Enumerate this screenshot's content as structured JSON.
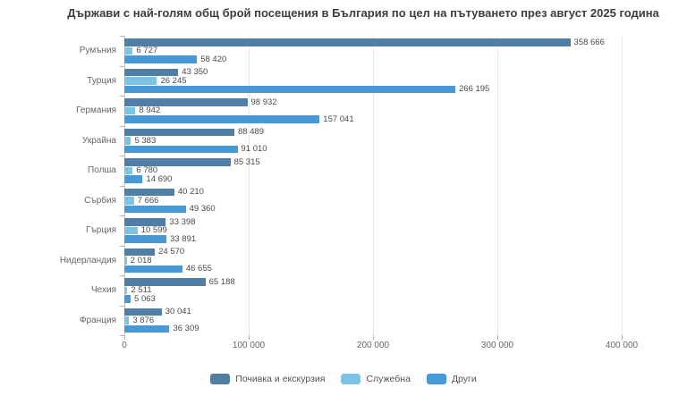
{
  "title": "Държави с най-голям общ брой посещения в България по цел на пътуването през август 2025 година",
  "colors": {
    "background": "#ffffff",
    "gridline": "#e9e9e9",
    "axis_line": "#c6c6c6",
    "tick": "#b3b3b3",
    "axis_label": "#666666",
    "value_label": "#4a4a4a",
    "title": "#3d3d3d"
  },
  "chart_data": {
    "type": "bar",
    "orientation": "horizontal",
    "title": "Държави с най-голям общ брой посещения в България по цел на пътуването през август 2025 година",
    "categories": [
      "Румъния",
      "Турция",
      "Германия",
      "Украйна",
      "Полша",
      "Сърбия",
      "Гърция",
      "Нидерландия",
      "Чехия",
      "Франция"
    ],
    "series": [
      {
        "name": "Почивка и екскурзия",
        "color": "#4f7ea6",
        "values": [
          358666,
          43350,
          98932,
          88489,
          85315,
          40210,
          33398,
          24570,
          65188,
          30041
        ]
      },
      {
        "name": "Служебна",
        "color": "#7cc3e6",
        "values": [
          6727,
          26245,
          8942,
          5383,
          6780,
          7666,
          10599,
          2018,
          2511,
          3876
        ]
      },
      {
        "name": "Други",
        "color": "#4699d6",
        "values": [
          58420,
          266195,
          157041,
          91010,
          14690,
          49360,
          33891,
          46655,
          5063,
          36309
        ]
      }
    ],
    "xlim": [
      0,
      400000
    ],
    "x_ticks": [
      {
        "value": 0,
        "label": "0"
      },
      {
        "value": 100000,
        "label": "100 000"
      },
      {
        "value": 200000,
        "label": "200 000"
      },
      {
        "value": 300000,
        "label": "300 000"
      },
      {
        "value": 400000,
        "label": "400 000"
      }
    ],
    "grid": true,
    "value_labels": true,
    "thousands_separator": " ",
    "legend_position": "bottom"
  }
}
